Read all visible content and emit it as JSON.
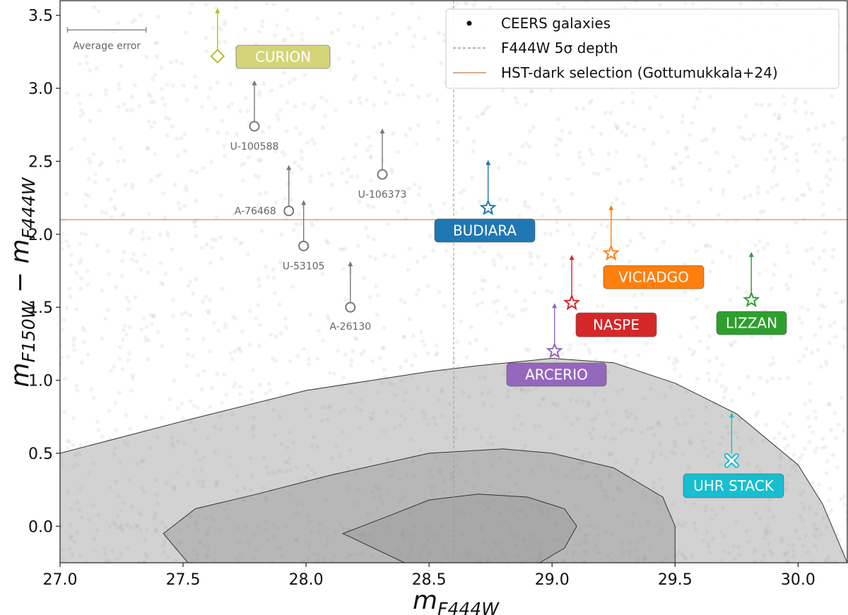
{
  "chart_data": {
    "type": "scatter",
    "xlabel_main": "m",
    "xlabel_sub": "F444W",
    "ylabel_main1": "m",
    "ylabel_sub1": "F150W",
    "ylabel_minus": " − ",
    "ylabel_main2": "m",
    "ylabel_sub2": "F444W",
    "xlim": [
      27.0,
      30.2
    ],
    "ylim": [
      -0.25,
      3.6
    ],
    "xticks": [
      "27.0",
      "27.5",
      "28.0",
      "28.5",
      "29.0",
      "29.5",
      "30.0"
    ],
    "xtick_values": [
      27.0,
      27.5,
      28.0,
      28.5,
      29.0,
      29.5,
      30.0
    ],
    "yticks": [
      "0.0",
      "0.5",
      "1.0",
      "1.5",
      "2.0",
      "2.5",
      "3.0",
      "3.5"
    ],
    "ytick_values": [
      0.0,
      0.5,
      1.0,
      1.5,
      2.0,
      2.5,
      3.0,
      3.5
    ],
    "depth_line_x": 28.6,
    "hst_dark_y": 2.1,
    "average_error": {
      "label": "Average error",
      "x_start": 27.03,
      "x_end": 27.35,
      "y": 3.4
    },
    "contours": [
      {
        "name": "outer",
        "points": [
          [
            27.0,
            0.5
          ],
          [
            27.5,
            0.72
          ],
          [
            28.0,
            0.93
          ],
          [
            28.5,
            1.06
          ],
          [
            28.7,
            1.1
          ],
          [
            29.0,
            1.15
          ],
          [
            29.25,
            1.12
          ],
          [
            29.5,
            0.98
          ],
          [
            29.75,
            0.77
          ],
          [
            30.0,
            0.42
          ],
          [
            30.1,
            0.15
          ],
          [
            30.2,
            -0.25
          ],
          [
            27.0,
            -0.25
          ]
        ]
      },
      {
        "name": "middle",
        "points": [
          [
            27.42,
            -0.05
          ],
          [
            27.55,
            0.12
          ],
          [
            27.8,
            0.22
          ],
          [
            28.1,
            0.35
          ],
          [
            28.5,
            0.5
          ],
          [
            28.8,
            0.53
          ],
          [
            29.0,
            0.5
          ],
          [
            29.25,
            0.4
          ],
          [
            29.45,
            0.2
          ],
          [
            29.5,
            0.0
          ],
          [
            29.5,
            -0.25
          ],
          [
            27.52,
            -0.25
          ]
        ]
      },
      {
        "name": "inner",
        "points": [
          [
            28.15,
            -0.05
          ],
          [
            28.35,
            0.08
          ],
          [
            28.5,
            0.18
          ],
          [
            28.7,
            0.22
          ],
          [
            28.9,
            0.2
          ],
          [
            29.05,
            0.12
          ],
          [
            29.1,
            0.0
          ],
          [
            29.05,
            -0.15
          ],
          [
            28.95,
            -0.25
          ],
          [
            28.4,
            -0.25
          ]
        ]
      }
    ],
    "grey_sources": [
      {
        "label": "U-100588",
        "x": 27.79,
        "y": 2.74
      },
      {
        "label": "A-76468",
        "x": 27.93,
        "y": 2.16
      },
      {
        "label": "U-106373",
        "x": 28.31,
        "y": 2.41
      },
      {
        "label": "U-53105",
        "x": 27.99,
        "y": 1.92
      },
      {
        "label": "A-26130",
        "x": 28.18,
        "y": 1.5
      }
    ],
    "named_sources": [
      {
        "label": "CURION",
        "x": 27.64,
        "y": 3.22,
        "color": "#bcbd22",
        "box_color": "#d4d57a",
        "marker": "diamond"
      },
      {
        "label": "BUDIARA",
        "x": 28.74,
        "y": 2.18,
        "color": "#1f77b4",
        "box_color": "#1f77b4",
        "marker": "star"
      },
      {
        "label": "VICIADGO",
        "x": 29.24,
        "y": 1.87,
        "color": "#ff7f0e",
        "box_color": "#ff7f0e",
        "marker": "star"
      },
      {
        "label": "NASPE",
        "x": 29.08,
        "y": 1.53,
        "color": "#d62728",
        "box_color": "#d62728",
        "marker": "star"
      },
      {
        "label": "LIZZAN",
        "x": 29.81,
        "y": 1.55,
        "color": "#2ca02c",
        "box_color": "#2ca02c",
        "marker": "star"
      },
      {
        "label": "ARCERIO",
        "x": 29.01,
        "y": 1.2,
        "color": "#9467bd",
        "box_color": "#9467bd",
        "marker": "star"
      },
      {
        "label": "UHR STACK",
        "x": 29.73,
        "y": 0.45,
        "color": "#17becf",
        "box_color": "#17becf",
        "marker": "x"
      }
    ],
    "legend": [
      {
        "label": "CEERS galaxies",
        "kind": "dot"
      },
      {
        "label": "F444W 5σ depth",
        "kind": "dashed"
      },
      {
        "label": "HST-dark selection (Gottumukkala+24)",
        "kind": "line"
      }
    ],
    "colors": {
      "hst_line": "#c8926a",
      "depth_line": "#999999",
      "grey_marker": "#777777",
      "contour_fill": "#888888",
      "scatter_dot": "#9a9a9a"
    }
  }
}
